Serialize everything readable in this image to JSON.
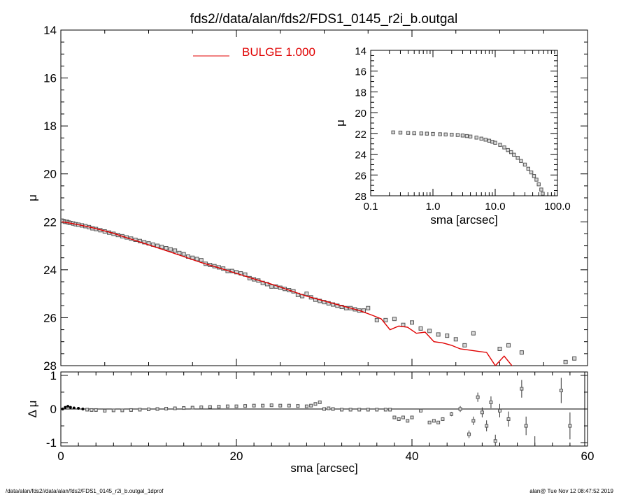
{
  "title": "fds2//data/alan/fds2/FDS1_0145_r2i_b.outgal",
  "footer": {
    "left": "/data/alan/fds2//data/alan/fds2/FDS1_0145_r2i_b.outgal_1dprof",
    "right": "alan@  Tue Nov 12 08:47:52 2019"
  },
  "colors": {
    "model": "#e00000",
    "data": "#555555",
    "axis": "#000000"
  },
  "chart_data": [
    {
      "id": "main",
      "type": "scatter",
      "xlabel": "sma [arcsec]",
      "ylabel": "μ",
      "xlim": [
        0,
        60
      ],
      "ylim": [
        28,
        14
      ],
      "y_inverted": true,
      "x_ticks": [
        0,
        20,
        40,
        60
      ],
      "x_tick_labels": [
        "0",
        "20",
        "40",
        "60"
      ],
      "y_ticks": [
        14,
        16,
        18,
        20,
        22,
        24,
        26,
        28
      ],
      "y_tick_labels": [
        "14",
        "16",
        "18",
        "20",
        "22",
        "24",
        "26",
        "28"
      ],
      "legend": {
        "placement": "top-center",
        "entries": [
          {
            "label": "BULGE  1.000",
            "color": "#e00000"
          }
        ]
      },
      "series": [
        {
          "name": "BULGE  1.000",
          "kind": "line",
          "x": [
            0.1,
            0.5,
            1.0,
            2.0,
            3.0,
            4.0,
            5.0,
            6.0,
            7.0,
            8.0,
            9.0,
            10.0,
            12.0,
            14.0,
            16.0,
            18.0,
            20.0,
            22.0,
            24.0,
            26.0,
            28.0,
            30.0,
            32.0,
            34.0,
            35.5,
            36.5,
            37.5,
            38.5,
            39.5,
            40.5,
            41.5,
            42.5,
            43.5,
            44.5,
            45.5,
            46.5,
            47.5,
            48.5,
            49.5,
            50.5,
            51.5
          ],
          "y": [
            22.0,
            22.02,
            22.05,
            22.12,
            22.2,
            22.28,
            22.38,
            22.48,
            22.6,
            22.72,
            22.84,
            22.96,
            23.2,
            23.45,
            23.7,
            23.92,
            24.15,
            24.38,
            24.6,
            24.85,
            25.1,
            25.3,
            25.5,
            25.7,
            25.9,
            26.05,
            26.5,
            26.35,
            26.4,
            26.65,
            26.6,
            27.0,
            27.05,
            27.15,
            27.3,
            27.35,
            27.4,
            27.45,
            28.0,
            27.6,
            28.05
          ]
        },
        {
          "name": "",
          "kind": "points",
          "x": [
            0.1,
            0.3,
            0.5,
            0.7,
            0.9,
            1.1,
            1.4,
            1.7,
            2.0,
            2.4,
            2.8,
            3.2,
            3.6,
            4.0,
            4.5,
            5.0,
            5.5,
            6.0,
            6.5,
            7.0,
            7.5,
            8.0,
            8.5,
            9.0,
            9.5,
            10.0,
            10.5,
            11.0,
            11.5,
            12.0,
            12.5,
            13.0,
            13.5,
            14.0,
            14.5,
            15.0,
            15.5,
            16.0,
            16.5,
            17.0,
            17.5,
            18.0,
            18.5,
            19.0,
            19.5,
            20.0,
            20.5,
            21.0,
            21.5,
            22.0,
            22.5,
            23.0,
            23.5,
            24.0,
            24.5,
            25.0,
            25.5,
            26.0,
            26.5,
            27.0,
            27.5,
            28.0,
            28.5,
            29.0,
            29.5,
            30.0,
            30.5,
            31.0,
            31.5,
            32.0,
            32.5,
            33.0,
            33.5,
            34.0,
            34.5,
            35.0,
            36.0,
            37.0,
            38.0,
            39.0,
            40.0,
            41.0,
            42.0,
            43.0,
            44.0,
            45.0,
            46.0,
            47.0,
            50.0,
            51.0,
            52.5,
            57.5,
            58.5
          ],
          "y": [
            21.95,
            21.97,
            22.0,
            22.0,
            22.03,
            22.05,
            22.07,
            22.1,
            22.12,
            22.15,
            22.18,
            22.22,
            22.27,
            22.3,
            22.35,
            22.4,
            22.45,
            22.5,
            22.55,
            22.6,
            22.65,
            22.7,
            22.75,
            22.8,
            22.85,
            22.9,
            22.95,
            23.0,
            23.05,
            23.1,
            23.15,
            23.2,
            23.3,
            23.35,
            23.45,
            23.5,
            23.55,
            23.6,
            23.75,
            23.8,
            23.85,
            23.9,
            23.95,
            24.05,
            24.05,
            24.1,
            24.15,
            24.2,
            24.35,
            24.4,
            24.45,
            24.55,
            24.6,
            24.7,
            24.7,
            24.75,
            24.8,
            24.85,
            24.9,
            25.05,
            25.1,
            25.0,
            25.15,
            25.25,
            25.3,
            25.35,
            25.4,
            25.45,
            25.5,
            25.55,
            25.6,
            25.6,
            25.65,
            25.7,
            25.7,
            25.6,
            26.1,
            26.1,
            26.05,
            26.3,
            26.2,
            26.45,
            26.55,
            26.7,
            26.75,
            26.9,
            27.15,
            26.65,
            27.3,
            27.15,
            27.45,
            27.85,
            27.7
          ]
        }
      ]
    },
    {
      "id": "inset",
      "type": "scatter",
      "xlabel": "sma [arcsec]",
      "ylabel": "μ",
      "x_scale": "log",
      "xlim": [
        0.1,
        100
      ],
      "ylim": [
        28,
        14
      ],
      "y_inverted": true,
      "x_ticks": [
        0.1,
        1,
        10,
        100
      ],
      "x_tick_labels": [
        "0.1",
        "1.0",
        "10.0",
        "100.0"
      ],
      "y_ticks": [
        14,
        16,
        18,
        20,
        22,
        24,
        26,
        28
      ],
      "y_tick_labels": [
        "14",
        "16",
        "18",
        "20",
        "22",
        "24",
        "26",
        "28"
      ],
      "series": [
        {
          "name": "",
          "kind": "points",
          "x": [
            0.23,
            0.3,
            0.4,
            0.5,
            0.65,
            0.8,
            1.0,
            1.3,
            1.6,
            2.0,
            2.5,
            3.0,
            3.5,
            4.0,
            5.0,
            6.0,
            7.0,
            8.0,
            9.0,
            10.0,
            12.0,
            14.0,
            16.0,
            18.0,
            20.0,
            23.0,
            26.0,
            30.0,
            34.0,
            38.0,
            42.0,
            46.0,
            50.0,
            55.0,
            58.0
          ],
          "y": [
            21.9,
            21.92,
            21.95,
            21.98,
            22.0,
            22.02,
            22.05,
            22.08,
            22.1,
            22.12,
            22.15,
            22.2,
            22.25,
            22.3,
            22.4,
            22.5,
            22.6,
            22.7,
            22.8,
            22.9,
            23.1,
            23.35,
            23.6,
            23.8,
            24.05,
            24.35,
            24.65,
            25.0,
            25.4,
            25.75,
            26.1,
            26.45,
            26.9,
            27.4,
            27.8
          ]
        }
      ]
    },
    {
      "id": "residual",
      "type": "scatter",
      "xlabel": "sma [arcsec]",
      "ylabel": "Δ μ",
      "xlim": [
        0,
        60
      ],
      "ylim": [
        -1.1,
        1.1
      ],
      "x_ticks": [
        0,
        20,
        40,
        60
      ],
      "x_tick_labels": [
        "0",
        "20",
        "40",
        "60"
      ],
      "y_ticks": [
        -1,
        0,
        1
      ],
      "y_tick_labels": [
        "-1",
        "0",
        "1"
      ],
      "reference_line": 0,
      "series": [
        {
          "name": "",
          "kind": "points_with_errors",
          "x": [
            0.2,
            0.5,
            0.8,
            1.1,
            1.5,
            2.0,
            2.5,
            3.0,
            3.5,
            4.0,
            5.0,
            6.0,
            7.0,
            8.0,
            9.0,
            10.0,
            11.0,
            12.0,
            13.0,
            14.0,
            15.0,
            16.0,
            17.0,
            18.0,
            19.0,
            20.0,
            21.0,
            22.0,
            23.0,
            24.0,
            25.0,
            26.0,
            27.0,
            28.0,
            28.5,
            29.0,
            29.5,
            30.0,
            30.5,
            31.0,
            32.0,
            33.0,
            34.0,
            35.0,
            36.0,
            37.0,
            37.5,
            38.0,
            38.5,
            39.0,
            39.5,
            40.0,
            41.0,
            42.0,
            42.5,
            43.0,
            43.5,
            44.5,
            45.5,
            46.5,
            47.0,
            47.5,
            48.0,
            48.5,
            49.0,
            49.5,
            50.0,
            51.0,
            52.5,
            53.0,
            57.0,
            58.0
          ],
          "y": [
            0.0,
            0.05,
            0.08,
            0.05,
            0.03,
            0.02,
            0.0,
            -0.02,
            -0.03,
            -0.03,
            -0.05,
            -0.04,
            -0.04,
            -0.03,
            -0.02,
            -0.01,
            0.0,
            0.01,
            0.02,
            0.03,
            0.04,
            0.05,
            0.06,
            0.07,
            0.08,
            0.08,
            0.09,
            0.1,
            0.1,
            0.11,
            0.1,
            0.1,
            0.09,
            0.08,
            0.1,
            0.15,
            0.2,
            0.0,
            0.02,
            0.0,
            -0.02,
            -0.02,
            -0.02,
            -0.02,
            -0.02,
            -0.02,
            -0.02,
            -0.25,
            -0.3,
            -0.25,
            -0.35,
            -0.25,
            -0.05,
            -0.4,
            -0.35,
            -0.4,
            -0.3,
            -0.15,
            0.0,
            -0.75,
            -0.35,
            0.35,
            -0.1,
            -0.5,
            0.2,
            -0.95,
            -0.05,
            -0.3,
            0.6,
            -0.5,
            0.55,
            -0.5
          ]
        }
      ]
    }
  ]
}
